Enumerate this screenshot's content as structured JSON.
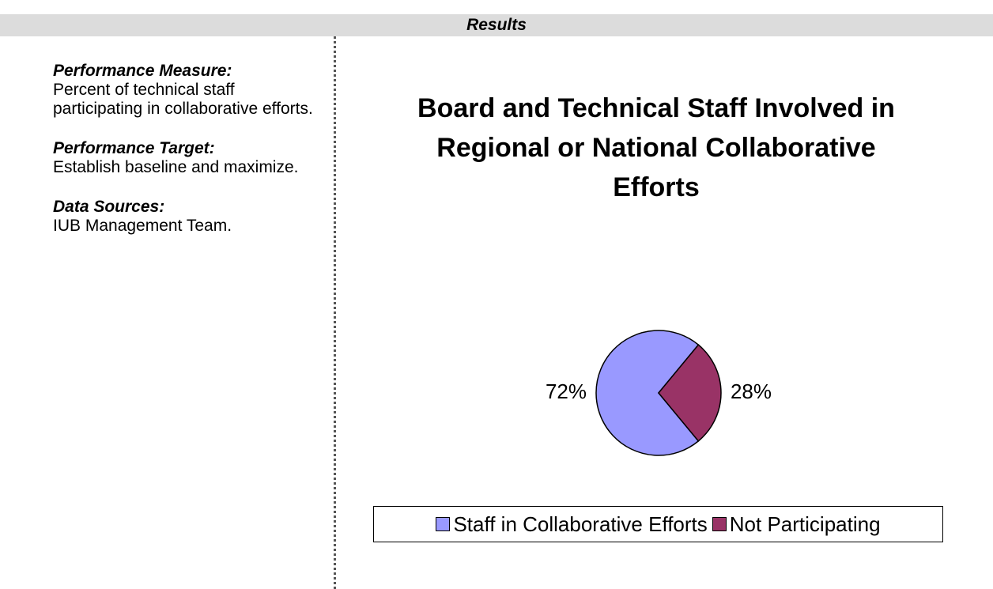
{
  "header": {
    "title": "Results"
  },
  "sections": [
    {
      "label": "Performance Measure:",
      "text": "Percent of technical staff participating in collaborative efforts."
    },
    {
      "label": "Performance Target:",
      "text": "Establish baseline and maximize."
    },
    {
      "label": "Data Sources:",
      "text": "IUB Management Team."
    }
  ],
  "chart_data": {
    "type": "pie",
    "title": "Board and Technical Staff Involved in Regional or National Collaborative Efforts",
    "categories": [
      "Staff in Collaborative Efforts",
      "Not Participating"
    ],
    "values": [
      72,
      28
    ],
    "value_labels": [
      "72%",
      "28%"
    ],
    "colors": [
      "#9999ff",
      "#993366"
    ],
    "legend": "bottom"
  }
}
